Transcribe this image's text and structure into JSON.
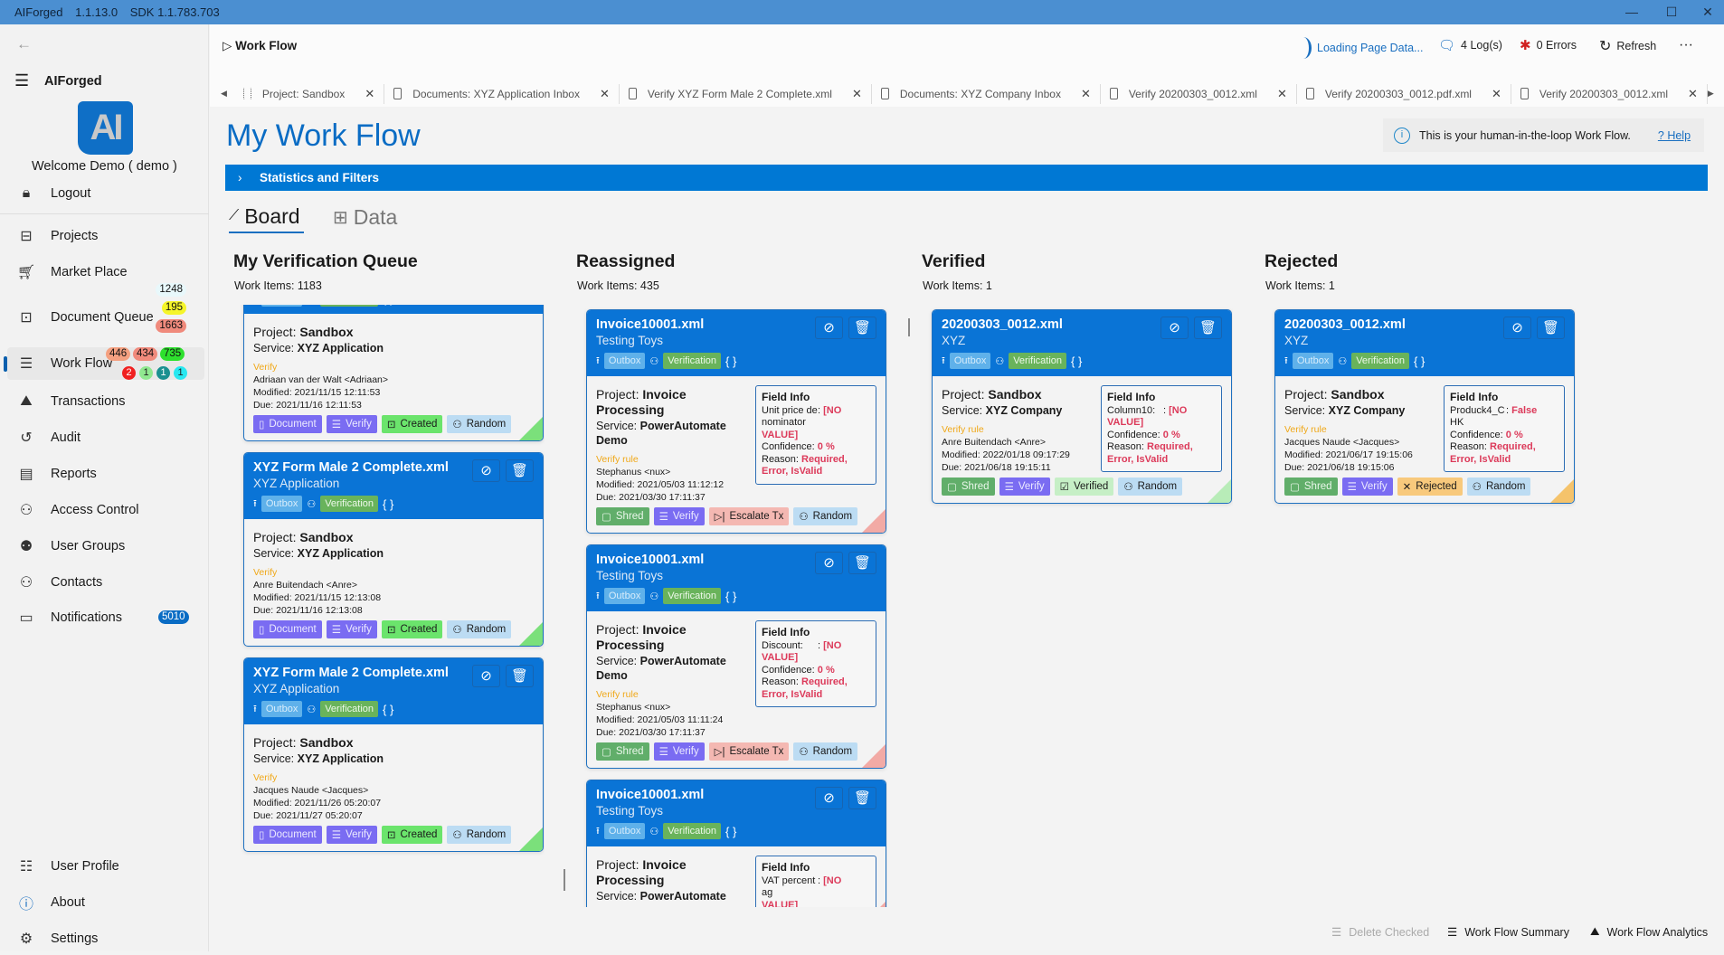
{
  "titlebar": {
    "app": "AIForged",
    "version": "1.1.13.0",
    "sdk": "SDK  1.1.783.703",
    "controls": [
      "minimize-icon",
      "maximize-icon",
      "close-icon"
    ]
  },
  "sidebar": {
    "brand": "AIForged",
    "logo_text": "AI",
    "welcome": "Welcome  Demo  ( demo )",
    "logout": "Logout",
    "items": [
      {
        "label": "Projects",
        "icon": "projects-icon"
      },
      {
        "label": "Market Place",
        "icon": "cart-icon"
      },
      {
        "label": "Document Queue",
        "icon": "briefcase-icon",
        "badges": [
          {
            "text": "1248",
            "color": "#e8f8fb"
          },
          {
            "text": "195",
            "color": "#f5f52a"
          },
          {
            "text": "1663",
            "color": "#f08a7c"
          }
        ]
      },
      {
        "label": "Work Flow",
        "icon": "list-icon",
        "selected": true,
        "badges": [
          {
            "text": "446",
            "color": "#f4a080"
          },
          {
            "text": "434",
            "color": "#f08a7c"
          },
          {
            "text": "735",
            "color": "#2ee02e"
          }
        ],
        "dots": [
          {
            "text": "2",
            "color": "#f02020"
          },
          {
            "text": "1",
            "color": "#90e890"
          },
          {
            "text": "1",
            "color": "#1a9090"
          },
          {
            "text": "1",
            "color": "#28e8f0"
          }
        ]
      },
      {
        "label": "Transactions",
        "icon": "chart-icon"
      },
      {
        "label": "Audit",
        "icon": "history-icon"
      },
      {
        "label": "Reports",
        "icon": "report-icon"
      },
      {
        "label": "Access Control",
        "icon": "access-icon"
      },
      {
        "label": "User Groups",
        "icon": "groups-icon"
      },
      {
        "label": "Contacts",
        "icon": "contacts-icon"
      },
      {
        "label": "Notifications",
        "icon": "chat-icon",
        "count": "5010"
      }
    ],
    "footer": [
      {
        "label": "User Profile",
        "icon": "profile-icon"
      },
      {
        "label": "About",
        "icon": "info-icon"
      },
      {
        "label": "Settings",
        "icon": "gear-icon"
      }
    ]
  },
  "header": {
    "breadcrumb": "Work Flow",
    "loading": "Loading Page Data...",
    "logs": "4 Log(s)",
    "errors": "0 Errors",
    "refresh": "Refresh",
    "more": "···",
    "tabs": [
      "Project: Sandbox",
      "Documents: XYZ Application Inbox",
      "Verify XYZ Form Male 2 Complete.xml",
      "Documents: XYZ Company Inbox",
      "Verify 20200303_0012.xml",
      "Verify 20200303_0012.pdf.xml",
      "Verify 20200303_0012.xml"
    ]
  },
  "page": {
    "title": "My Work Flow",
    "info": "This is your human-in-the-loop Work Flow.",
    "help": "? Help",
    "stats": "Statistics and Filters",
    "view_tabs": [
      "Board",
      "Data"
    ],
    "accent": "#0078d4"
  },
  "columns": [
    {
      "title": "My Verification Queue",
      "count": "Work Items: 1183",
      "corner": "#7be07b",
      "cards": [
        {
          "partial": true,
          "outbox": "Outbox",
          "stage": "Verification",
          "project": "Sandbox",
          "service": "XYZ Application",
          "rule": "Verify",
          "user": "Adriaan van der Walt <Adriaan>",
          "modified": "2021/11/15 12:11:53",
          "due": "2021/11/16 12:11:53",
          "actions": [
            [
              "Document",
              "doc"
            ],
            [
              "Verify",
              "ver"
            ],
            [
              "Created",
              "cre"
            ],
            [
              "Random",
              "ran"
            ]
          ]
        },
        {
          "title": "XYZ Form Male 2 Complete.xml",
          "subtitle": "XYZ Application",
          "outbox": "Outbox",
          "stage": "Verification",
          "project": "Sandbox",
          "service": "XYZ Application",
          "rule": "Verify",
          "user": "Anre Buitendach <Anre>",
          "modified": "2021/11/15 12:13:08",
          "due": "2021/11/16 12:13:08",
          "actions": [
            [
              "Document",
              "doc"
            ],
            [
              "Verify",
              "ver"
            ],
            [
              "Created",
              "cre"
            ],
            [
              "Random",
              "ran"
            ]
          ]
        },
        {
          "title": "XYZ Form Male 2 Complete.xml",
          "subtitle": "XYZ Application",
          "outbox": "Outbox",
          "stage": "Verification",
          "project": "Sandbox",
          "service": "XYZ Application",
          "rule": "Verify",
          "user": "Jacques Naude <Jacques>",
          "modified": "2021/11/26 05:20:07",
          "due": "2021/11/27 05:20:07",
          "actions": [
            [
              "Document",
              "doc"
            ],
            [
              "Verify",
              "ver"
            ],
            [
              "Created",
              "cre"
            ],
            [
              "Random",
              "ran"
            ]
          ]
        }
      ]
    },
    {
      "title": "Reassigned",
      "count": "Work Items: 435",
      "corner": "#f2aaa5",
      "cards": [
        {
          "title": "Invoice10001.xml",
          "subtitle": "Testing Toys",
          "outbox": "Outbox",
          "stage": "Verification",
          "project": "Invoice Processing",
          "service": "PowerAutomate Demo",
          "rule": "Verify rule",
          "user": "Stephanus <nux>",
          "modified": "2021/05/03 11:12:12",
          "due": "2021/03/30 17:11:37",
          "field": {
            "name": "Unit price denominator",
            "value": "[NO VALUE]",
            "confidence": "0 %",
            "reason": "Required, Error, IsValid"
          },
          "actions": [
            [
              "Shred",
              "shr"
            ],
            [
              "Verify",
              "ver"
            ],
            [
              "Escalate Tx",
              "esc"
            ],
            [
              "Random",
              "ran"
            ]
          ]
        },
        {
          "title": "Invoice10001.xml",
          "subtitle": "Testing Toys",
          "outbox": "Outbox",
          "stage": "Verification",
          "project": "Invoice Processing",
          "service": "PowerAutomate Demo",
          "rule": "Verify rule",
          "user": "Stephanus <nux>",
          "modified": "2021/05/03 11:11:24",
          "due": "2021/03/30 17:11:37",
          "field": {
            "name": "Discount:",
            "value": "[NO VALUE]",
            "confidence": "0 %",
            "reason": "Required, Error, IsValid"
          },
          "actions": [
            [
              "Shred",
              "shr"
            ],
            [
              "Verify",
              "ver"
            ],
            [
              "Escalate Tx",
              "esc"
            ],
            [
              "Random",
              "ran"
            ]
          ]
        },
        {
          "title": "Invoice10001.xml",
          "subtitle": "Testing Toys",
          "outbox": "Outbox",
          "stage": "Verification",
          "project": "Invoice Processing",
          "service": "PowerAutomate",
          "field": {
            "name": "VAT percentag",
            "value": "[NO VALUE]"
          }
        }
      ]
    },
    {
      "title": "Verified",
      "count": "Work Items: 1",
      "corner": "#b8ecb8",
      "cards": [
        {
          "title": "20200303_0012.xml",
          "subtitle": "XYZ",
          "outbox": "Outbox",
          "stage": "Verification",
          "project": "Sandbox",
          "service": "XYZ Company",
          "rule": "Verify rule",
          "user": "Anre Buitendach <Anre>",
          "modified": "2022/01/18 09:17:29",
          "due": "2021/06/18 19:15:11",
          "field": {
            "name": "Column10:",
            "value": "[NO VALUE]",
            "confidence": "0 %",
            "reason": "Required, Error, IsValid"
          },
          "actions": [
            [
              "Shred",
              "shr"
            ],
            [
              "Verify",
              "ver"
            ],
            [
              "Verified",
              "vfd"
            ],
            [
              "Random",
              "ran"
            ]
          ]
        }
      ]
    },
    {
      "title": "Rejected",
      "count": "Work Items: 1",
      "corner": "#f5c36b",
      "cards": [
        {
          "title": "20200303_0012.xml",
          "subtitle": "XYZ",
          "outbox": "Outbox",
          "stage": "Verification",
          "project": "Sandbox",
          "service": "XYZ Company",
          "rule": "Verify rule",
          "user": "Jacques Naude <Jacques>",
          "modified": "2021/06/17 19:15:06",
          "due": "2021/06/18 19:15:06",
          "field": {
            "name": "Produck4_CHK",
            "value": "False",
            "confidence": "0 %",
            "reason": "Required, Error, IsValid"
          },
          "actions": [
            [
              "Shred",
              "shr"
            ],
            [
              "Verify",
              "ver"
            ],
            [
              "Rejected",
              "rej"
            ],
            [
              "Random",
              "ran"
            ]
          ]
        }
      ]
    }
  ],
  "labels": {
    "project": "Project: ",
    "service": "Service: ",
    "modified": "Modified:  ",
    "due": "Due:  ",
    "field_info": "Field Info",
    "confidence": "Confidence: ",
    "reason": "Reason: ",
    "json": "{ }"
  },
  "bottom": {
    "delete": "Delete Checked",
    "summary": "Work Flow Summary",
    "analytics": "Work Flow Analytics"
  }
}
